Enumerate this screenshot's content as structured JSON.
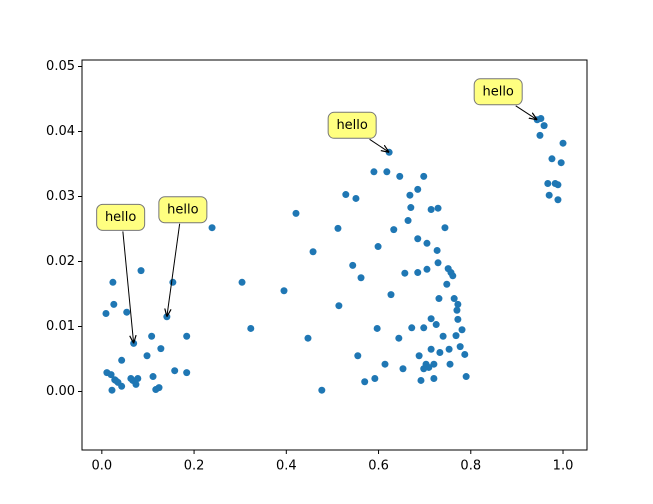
{
  "chart_data": {
    "type": "scatter",
    "color": "#1f77b4",
    "x": [
      0.011,
      0.02,
      0.022,
      0.028,
      0.035,
      0.043,
      0.009,
      0.024,
      0.026,
      0.054,
      0.067,
      0.074,
      0.063,
      0.078,
      0.085,
      0.098,
      0.108,
      0.111,
      0.117,
      0.124,
      0.128,
      0.141,
      0.154,
      0.158,
      0.184,
      0.184,
      0.043,
      0.069,
      0.03,
      0.239,
      0.304,
      0.323,
      0.395,
      0.421,
      0.447,
      0.458,
      0.477,
      0.512,
      0.514,
      0.529,
      0.544,
      0.551,
      0.555,
      0.562,
      0.57,
      0.592,
      0.59,
      0.597,
      0.599,
      0.614,
      0.618,
      0.623,
      0.627,
      0.633,
      0.644,
      0.646,
      0.653,
      0.657,
      0.664,
      0.668,
      0.67,
      0.672,
      0.685,
      0.685,
      0.685,
      0.688,
      0.692,
      0.698,
      0.698,
      0.705,
      0.705,
      0.714,
      0.714,
      0.714,
      0.729,
      0.72,
      0.72,
      0.725,
      0.727,
      0.729,
      0.731,
      0.733,
      0.74,
      0.744,
      0.748,
      0.751,
      0.753,
      0.757,
      0.761,
      0.764,
      0.768,
      0.77,
      0.772,
      0.772,
      0.777,
      0.781,
      0.787,
      0.79,
      0.755,
      0.703,
      0.709,
      0.698,
      0.944,
      0.952,
      0.959,
      0.95,
      0.976,
      0.967,
      0.97,
      0.983,
      0.989,
      0.989,
      0.996,
      1.0
    ],
    "values": [
      0.0029,
      0.0026,
      0.0002,
      0.0018,
      0.0014,
      0.0008,
      0.012,
      0.0168,
      0.0134,
      0.0122,
      0.0017,
      0.0011,
      0.002,
      0.002,
      0.0186,
      0.0055,
      0.0085,
      0.0023,
      0.0003,
      0.0006,
      0.0066,
      0.0115,
      0.0168,
      0.0032,
      0.0085,
      0.0029,
      0.0048,
      0.0074,
      0.0017,
      0.0252,
      0.0168,
      0.0097,
      0.0155,
      0.0274,
      0.0082,
      0.0215,
      0.0002,
      0.0251,
      0.0132,
      0.0303,
      0.0194,
      0.0297,
      0.0055,
      0.0175,
      0.0015,
      0.002,
      0.0338,
      0.0097,
      0.0223,
      0.0042,
      0.0338,
      0.0368,
      0.0149,
      0.0249,
      0.0082,
      0.0331,
      0.0035,
      0.0182,
      0.0263,
      0.0302,
      0.0283,
      0.0098,
      0.0311,
      0.0235,
      0.0183,
      0.0055,
      0.0017,
      0.0331,
      0.0098,
      0.0228,
      0.0188,
      0.028,
      0.0112,
      0.0065,
      0.0282,
      0.0042,
      0.002,
      0.0103,
      0.0217,
      0.0198,
      0.0143,
      0.006,
      0.0085,
      0.0252,
      0.0165,
      0.0189,
      0.0065,
      0.0183,
      0.0178,
      0.0143,
      0.0086,
      0.0125,
      0.0134,
      0.0111,
      0.0069,
      0.0095,
      0.0057,
      0.0023,
      0.0042,
      0.0042,
      0.0037,
      0.0035,
      0.0418,
      0.042,
      0.0409,
      0.0394,
      0.0358,
      0.032,
      0.0302,
      0.032,
      0.0318,
      0.0295,
      0.0352,
      0.0382
    ],
    "xlim": [
      -0.043,
      1.052
    ],
    "ylim": [
      -0.009,
      0.051
    ],
    "xticks": [
      {
        "value": 0,
        "label": "0.0"
      },
      {
        "value": 0.2,
        "label": "0.2"
      },
      {
        "value": 0.4,
        "label": "0.4"
      },
      {
        "value": 0.6,
        "label": "0.6"
      },
      {
        "value": 0.8,
        "label": "0.8"
      },
      {
        "value": 1,
        "label": "1.0"
      }
    ],
    "yticks": [
      {
        "value": 0,
        "label": "0.00"
      },
      {
        "value": 0.01,
        "label": "0.01"
      },
      {
        "value": 0.02,
        "label": "0.02"
      },
      {
        "value": 0.03,
        "label": "0.03"
      },
      {
        "value": 0.04,
        "label": "0.04"
      },
      {
        "value": 0.05,
        "label": "0.05"
      }
    ],
    "annotations": [
      {
        "text": "hello",
        "x": 0.069,
        "y": 0.0074
      },
      {
        "text": "hello",
        "x": 0.141,
        "y": 0.0115
      },
      {
        "text": "hello",
        "x": 0.623,
        "y": 0.0368
      },
      {
        "text": "hello",
        "x": 0.944,
        "y": 0.0418
      }
    ]
  }
}
